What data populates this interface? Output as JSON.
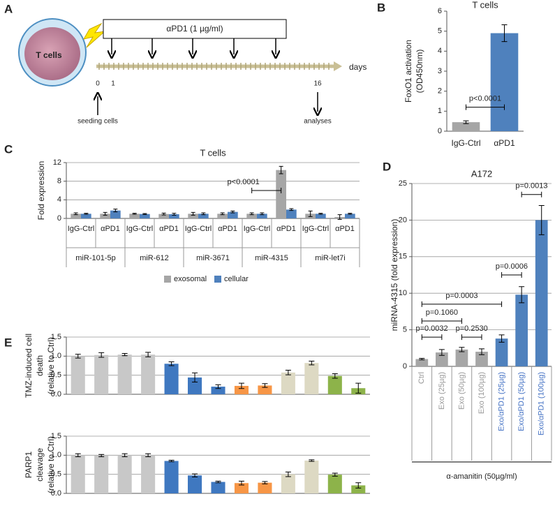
{
  "panel_labels": [
    "A",
    "B",
    "C",
    "D",
    "E"
  ],
  "diagram": {
    "cell_label": "T cells",
    "treatment": "αPD1 (1 µg/ml)",
    "axis_label": "days",
    "timeline_ticks": [
      "0",
      "1",
      "16"
    ],
    "start_label": "seeding cells",
    "end_label": "analyses"
  },
  "chart_data": [
    {
      "type": "bar",
      "title": "T cells",
      "ylabel": [
        "FoxO1 activation",
        "(OD450nm)"
      ],
      "categories": [
        "IgG-Ctrl",
        "αPD1"
      ],
      "values": [
        0.45,
        4.9
      ],
      "errors": [
        0.07,
        0.42
      ],
      "colors": [
        "#a6a6a6",
        "#4f81bd"
      ],
      "ylim": [
        0,
        6
      ],
      "yticks": [
        0,
        1,
        2,
        3,
        4,
        5,
        6
      ],
      "grid": false,
      "annotations": [
        "p<0.0001"
      ]
    },
    {
      "type": "grouped-bar",
      "title": "T cells",
      "ylabel": [
        "Fold expression"
      ],
      "categories": [
        "IgG-Ctrl",
        "αPD1",
        "IgG-Ctrl",
        "αPD1",
        "IgG-Ctrl",
        "αPD1",
        "IgG-Ctrl",
        "αPD1",
        "IgG-Ctrl",
        "αPD1"
      ],
      "groups": [
        "miR-101-5p",
        "miR-612",
        "miR-3671",
        "miR-4315",
        "miR-let7i"
      ],
      "series": [
        {
          "name": "exosomal",
          "color": "#a6a6a6",
          "values": [
            1.0,
            1.0,
            1.0,
            0.95,
            1.0,
            1.0,
            1.0,
            10.4,
            1.0,
            0.3
          ],
          "errors": [
            0.2,
            0.3,
            0.1,
            0.2,
            0.3,
            0.2,
            0.2,
            0.8,
            0.6,
            0.5
          ]
        },
        {
          "name": "cellular",
          "color": "#4f81bd",
          "values": [
            1.0,
            1.7,
            0.95,
            0.9,
            1.0,
            1.4,
            1.0,
            1.9,
            1.0,
            1.0
          ],
          "errors": [
            0.1,
            0.3,
            0.1,
            0.2,
            0.2,
            0.2,
            0.2,
            0.2,
            0.1,
            0.1
          ]
        }
      ],
      "ylim": [
        0,
        12
      ],
      "yticks": [
        0,
        4,
        8,
        12
      ],
      "grid": true,
      "legend": "bottom",
      "annotations": [
        "p<0.0001"
      ]
    },
    {
      "type": "bar",
      "title": "A172",
      "ylabel": [
        "miRNA-4315 (fold expression)"
      ],
      "xlabel": "α-amanitin (50µg/ml)",
      "categories": [
        "Ctrl",
        "Exo (25µg)",
        "Exo (50µg)",
        "Exo (100µg)",
        "Exo/αPD1 (25µg)",
        "Exo/αPD1 (50µg)",
        "Exo/αPD1 (100µg)"
      ],
      "values": [
        1.0,
        1.9,
        2.3,
        2.0,
        3.8,
        9.8,
        20.0
      ],
      "errors": [
        0.1,
        0.4,
        0.3,
        0.4,
        0.5,
        1.1,
        2.0
      ],
      "colors": [
        "#a6a6a6",
        "#a6a6a6",
        "#a6a6a6",
        "#a6a6a6",
        "#4f81bd",
        "#4f81bd",
        "#4f81bd"
      ],
      "label_colors": [
        "#999999",
        "#999999",
        "#999999",
        "#999999",
        "#4472c4",
        "#4472c4",
        "#4472c4"
      ],
      "ylim": [
        0,
        25
      ],
      "yticks": [
        0,
        5,
        10,
        15,
        20,
        25
      ],
      "grid": true,
      "annotations": [
        "p=0.0032",
        "p=0.1060",
        "p=0.0003",
        "p=0.2530",
        "p=0.0006",
        "p=0.0013"
      ]
    },
    {
      "type": "bar",
      "ylabel": [
        "TMZ-induced cell",
        "death",
        "(relative to Ctrl)"
      ],
      "categories": [
        null,
        null,
        null,
        null,
        null,
        null,
        null,
        null,
        null,
        null,
        null,
        null,
        null
      ],
      "values": [
        1.0,
        1.03,
        1.04,
        1.04,
        0.8,
        0.44,
        0.2,
        0.22,
        0.23,
        0.57,
        0.82,
        0.48,
        0.16
      ],
      "errors": [
        0.05,
        0.06,
        0.03,
        0.06,
        0.05,
        0.12,
        0.05,
        0.07,
        0.05,
        0.06,
        0.05,
        0.06,
        0.13
      ],
      "colors": [
        "#c8c8c8",
        "#c8c8c8",
        "#c8c8c8",
        "#c8c8c8",
        "#3f78c0",
        "#3f78c0",
        "#3f78c0",
        "#f79646",
        "#f79646",
        "#ddd9c3",
        "#ddd9c3",
        "#8db34a",
        "#8db34a"
      ],
      "ylim": [
        0,
        1.5
      ],
      "yticks": [
        {
          "value": 0,
          "label": "0.0"
        },
        {
          "value": 0.5,
          "label": "0.5"
        },
        {
          "value": 1,
          "label": "1.0"
        },
        {
          "value": 1.5,
          "label": "1.5"
        }
      ],
      "grid": true
    },
    {
      "type": "bar",
      "ylabel": [
        "PARP1",
        "cleavage",
        "(relative to Ctrl)"
      ],
      "categories": [
        null,
        null,
        null,
        null,
        null,
        null,
        null,
        null,
        null,
        null,
        null,
        null,
        null
      ],
      "values": [
        1.0,
        0.99,
        1.0,
        1.0,
        0.85,
        0.47,
        0.3,
        0.27,
        0.28,
        0.5,
        0.86,
        0.49,
        0.21
      ],
      "errors": [
        0.04,
        0.03,
        0.04,
        0.04,
        0.02,
        0.04,
        0.02,
        0.05,
        0.03,
        0.06,
        0.02,
        0.04,
        0.07
      ],
      "colors": [
        "#c8c8c8",
        "#c8c8c8",
        "#c8c8c8",
        "#c8c8c8",
        "#3f78c0",
        "#3f78c0",
        "#3f78c0",
        "#f79646",
        "#f79646",
        "#ddd9c3",
        "#ddd9c3",
        "#8db34a",
        "#8db34a"
      ],
      "ylim": [
        0,
        1.5
      ],
      "yticks": [
        {
          "value": 0,
          "label": "0.0"
        },
        {
          "value": 0.5,
          "label": "0.5"
        },
        {
          "value": 1,
          "label": "1.0"
        },
        {
          "value": 1.5,
          "label": "1.5"
        }
      ],
      "grid": true
    }
  ]
}
